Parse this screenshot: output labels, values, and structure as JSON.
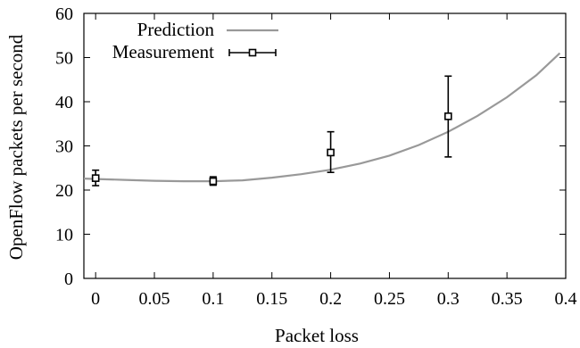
{
  "chart_data": {
    "type": "line",
    "title": "",
    "xlabel": "Packet loss",
    "ylabel": "OpenFlow packets per second",
    "xlim": [
      -0.01,
      0.4
    ],
    "ylim": [
      0,
      60
    ],
    "xticks": [
      0,
      0.05,
      0.1,
      0.15,
      0.2,
      0.25,
      0.3,
      0.35,
      0.4
    ],
    "xtick_labels": [
      "0",
      "0.05",
      "0.1",
      "0.15",
      "0.2",
      "0.25",
      "0.3",
      "0.35",
      "0.4"
    ],
    "yticks": [
      0,
      10,
      20,
      30,
      40,
      50,
      60
    ],
    "ytick_labels": [
      "0",
      "10",
      "20",
      "30",
      "40",
      "50",
      "60"
    ],
    "grid": false,
    "legend": {
      "position": "top-left"
    },
    "series": [
      {
        "name": "Prediction",
        "kind": "line",
        "color": "#999999",
        "x": [
          -0.01,
          0.0,
          0.025,
          0.05,
          0.075,
          0.1,
          0.125,
          0.15,
          0.175,
          0.2,
          0.225,
          0.25,
          0.275,
          0.3,
          0.325,
          0.35,
          0.375,
          0.395
        ],
        "y": [
          22.6,
          22.5,
          22.3,
          22.1,
          22.0,
          22.0,
          22.2,
          22.8,
          23.6,
          24.6,
          26.0,
          27.8,
          30.2,
          33.2,
          36.8,
          41.0,
          46.0,
          51.0
        ]
      },
      {
        "name": "Measurement",
        "kind": "errorbar",
        "color": "#000000",
        "x": [
          0,
          0.1,
          0.2,
          0.3
        ],
        "y": [
          22.7,
          22.0,
          28.5,
          36.7
        ],
        "y_low": [
          21.0,
          21.1,
          24.0,
          27.5
        ],
        "y_high": [
          24.5,
          23.0,
          33.2,
          45.8
        ]
      }
    ]
  }
}
